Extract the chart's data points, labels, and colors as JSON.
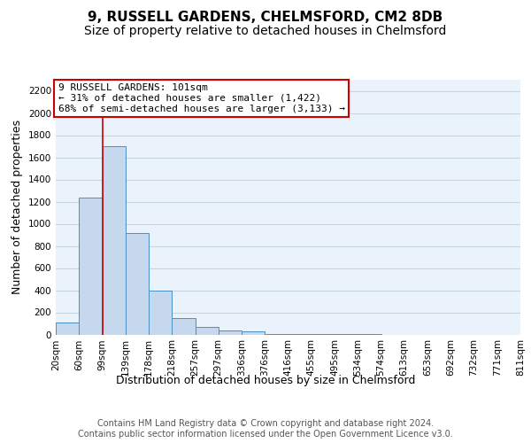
{
  "title": "9, RUSSELL GARDENS, CHELMSFORD, CM2 8DB",
  "subtitle": "Size of property relative to detached houses in Chelmsford",
  "xlabel": "Distribution of detached houses by size in Chelmsford",
  "ylabel": "Number of detached properties",
  "bar_values": [
    110,
    1240,
    1700,
    920,
    400,
    150,
    65,
    35,
    25,
    5,
    3,
    2,
    1,
    1,
    0,
    0,
    0,
    0,
    0,
    0
  ],
  "bin_labels": [
    "20sqm",
    "60sqm",
    "99sqm",
    "139sqm",
    "178sqm",
    "218sqm",
    "257sqm",
    "297sqm",
    "336sqm",
    "376sqm",
    "416sqm",
    "455sqm",
    "495sqm",
    "534sqm",
    "574sqm",
    "613sqm",
    "653sqm",
    "692sqm",
    "732sqm",
    "771sqm",
    "811sqm"
  ],
  "bar_color": "#c5d8ed",
  "bar_edge_color": "#4a90c4",
  "grid_color": "#c8d4e0",
  "background_color": "#eaf2fb",
  "vline_x": 2,
  "vline_color": "#cc0000",
  "annotation_text": "9 RUSSELL GARDENS: 101sqm\n← 31% of detached houses are smaller (1,422)\n68% of semi-detached houses are larger (3,133) →",
  "annotation_box_color": "#ffffff",
  "annotation_box_edge": "#cc0000",
  "ylim": [
    0,
    2300
  ],
  "yticks": [
    0,
    200,
    400,
    600,
    800,
    1000,
    1200,
    1400,
    1600,
    1800,
    2000,
    2200
  ],
  "footer_text": "Contains HM Land Registry data © Crown copyright and database right 2024.\nContains public sector information licensed under the Open Government Licence v3.0.",
  "title_fontsize": 11,
  "subtitle_fontsize": 10,
  "xlabel_fontsize": 9,
  "ylabel_fontsize": 9,
  "tick_fontsize": 7.5,
  "annotation_fontsize": 8,
  "footer_fontsize": 7
}
